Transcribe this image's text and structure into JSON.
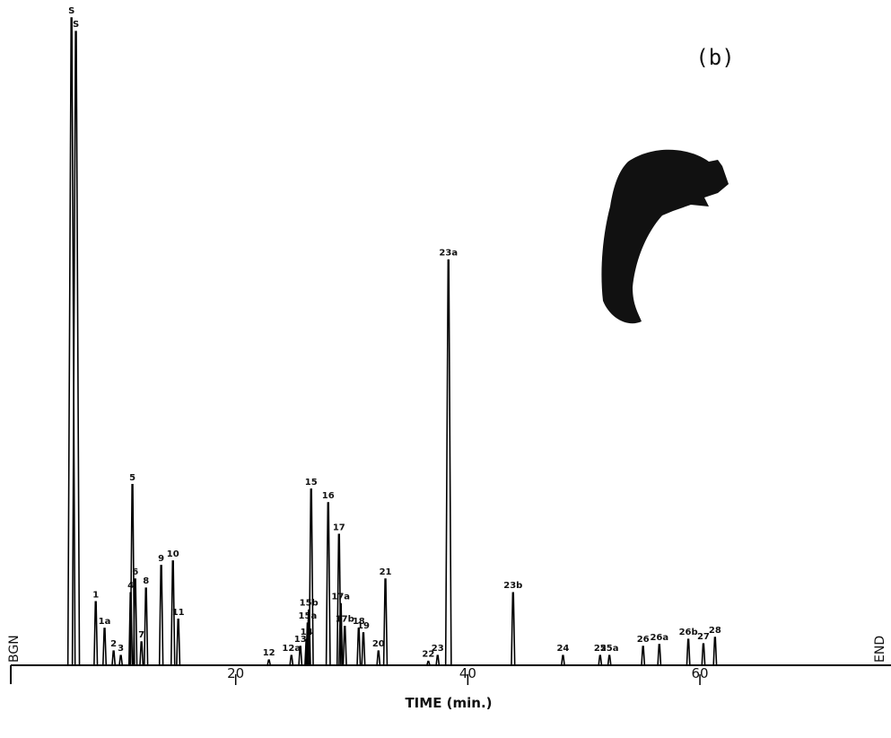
{
  "chart_data": {
    "type": "chromatogram",
    "panel_label": "(b)",
    "xlabel": "TIME (min.)",
    "start_label": "BGN",
    "end_label": "END",
    "xlim": [
      0,
      76
    ],
    "xticks": [
      20,
      40,
      60
    ],
    "ylim": [
      0,
      100
    ],
    "color": "#000000",
    "peak_labels": [
      "S",
      "S",
      "1",
      "1a",
      "2",
      "3",
      "4",
      "5",
      "6",
      "7",
      "8",
      "9",
      "10",
      "11",
      "12",
      "12a",
      "13",
      "14",
      "15a",
      "15b",
      "15",
      "16",
      "17",
      "17a",
      "17b",
      "18",
      "19",
      "20",
      "21",
      "22",
      "23",
      "23a",
      "23b",
      "24",
      "25",
      "25a",
      "26",
      "26a",
      "26b",
      "27",
      "28"
    ],
    "x": [
      5.85,
      6.23,
      7.94,
      8.7,
      9.48,
      10.1,
      10.95,
      11.1,
      11.34,
      11.88,
      12.27,
      13.58,
      14.59,
      15.05,
      22.86,
      24.8,
      25.57,
      26.1,
      26.2,
      26.3,
      26.5,
      27.97,
      28.9,
      29.05,
      29.4,
      30.6,
      31.0,
      32.3,
      32.9,
      36.6,
      37.4,
      38.33,
      43.9,
      48.2,
      51.4,
      52.2,
      55.1,
      56.5,
      59.0,
      60.3,
      61.3
    ],
    "values": [
      100,
      97.9,
      9.8,
      5.7,
      2.2,
      1.5,
      11.2,
      27.9,
      13.3,
      3.6,
      11.9,
      15.4,
      16.1,
      7.1,
      0.8,
      1.5,
      2.9,
      4.0,
      6.5,
      8.5,
      27.2,
      25.1,
      20.2,
      9.5,
      6.0,
      5.7,
      5.0,
      2.2,
      13.3,
      0.6,
      1.5,
      62.6,
      11.2,
      1.5,
      1.5,
      1.5,
      2.9,
      3.2,
      4.0,
      3.3,
      4.3
    ]
  }
}
